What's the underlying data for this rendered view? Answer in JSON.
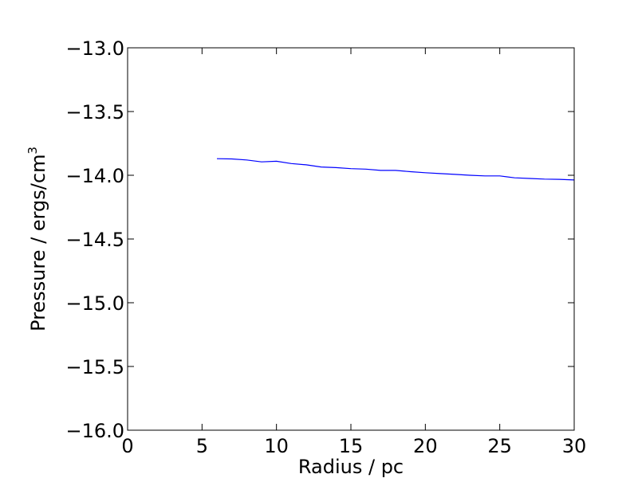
{
  "chart_data": {
    "type": "line",
    "xlabel": "Radius / pc",
    "ylabel_main": "Pressure / ergs/cm",
    "ylabel_sup": "3",
    "xlim": [
      0,
      30
    ],
    "ylim": [
      -16.0,
      -13.0
    ],
    "x_ticks": [
      0,
      5,
      10,
      15,
      20,
      25,
      30
    ],
    "x_tick_labels": [
      "0",
      "5",
      "10",
      "15",
      "20",
      "25",
      "30"
    ],
    "y_ticks": [
      -16.0,
      -15.5,
      -15.0,
      -14.5,
      -14.0,
      -13.5,
      -13.0
    ],
    "y_tick_labels": [
      "−16.0",
      "−15.5",
      "−15.0",
      "−14.5",
      "−14.0",
      "−13.5",
      "−13.0"
    ],
    "grid": false,
    "series": [
      {
        "color": "#0000ff",
        "x": [
          6,
          7,
          8,
          9,
          10,
          11,
          12,
          13,
          14,
          15,
          16,
          17,
          18,
          19,
          20,
          21,
          22,
          23,
          24,
          25,
          26,
          27,
          28,
          29,
          30
        ],
        "y": [
          -13.87,
          -13.872,
          -13.88,
          -13.895,
          -13.89,
          -13.908,
          -13.918,
          -13.935,
          -13.94,
          -13.948,
          -13.952,
          -13.962,
          -13.962,
          -13.972,
          -13.98,
          -13.987,
          -13.993,
          -14.0,
          -14.005,
          -14.005,
          -14.02,
          -14.025,
          -14.03,
          -14.032,
          -14.037
        ]
      }
    ]
  }
}
